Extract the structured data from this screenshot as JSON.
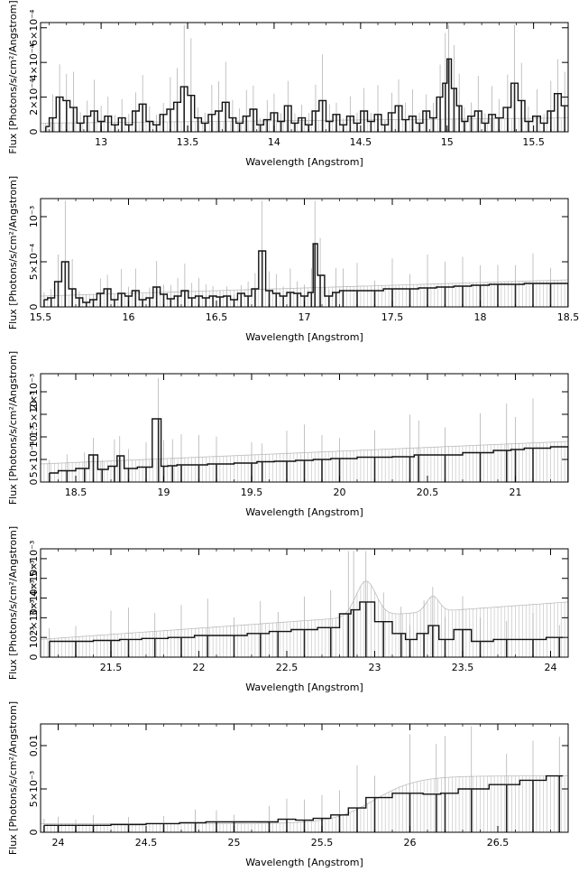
{
  "chart_data": [
    {
      "type": "line",
      "xlabel": "Wavelength [Angstrom]",
      "ylabel": "Flux [Photons/s/cm²/Angstrom]",
      "xlim": [
        12.65,
        15.7
      ],
      "ylim": [
        0,
        0.00063
      ],
      "xticks": [
        "13",
        "13.5",
        "14",
        "14.5",
        "15",
        "15.5"
      ],
      "xtick_values": [
        13,
        13.5,
        14,
        14.5,
        15,
        15.5
      ],
      "ytick_labels": [
        "0",
        "2×10⁻⁴",
        "4×10⁻⁴",
        "6×10⁻⁴"
      ],
      "ytick_values": [
        0,
        0.0002,
        0.0004,
        0.0006
      ],
      "error_band_level": [
        5e-05,
        8e-05
      ],
      "spectrum": [
        [
          12.68,
          3e-05
        ],
        [
          12.72,
          8e-05
        ],
        [
          12.76,
          0.0002
        ],
        [
          12.8,
          0.00018
        ],
        [
          12.84,
          0.00014
        ],
        [
          12.88,
          5e-05
        ],
        [
          12.92,
          9e-05
        ],
        [
          12.96,
          0.00012
        ],
        [
          13.0,
          6e-05
        ],
        [
          13.04,
          9e-05
        ],
        [
          13.08,
          4e-05
        ],
        [
          13.12,
          8e-05
        ],
        [
          13.16,
          4e-05
        ],
        [
          13.2,
          0.00012
        ],
        [
          13.24,
          0.00016
        ],
        [
          13.28,
          6e-05
        ],
        [
          13.32,
          4e-05
        ],
        [
          13.36,
          0.0001
        ],
        [
          13.4,
          0.00013
        ],
        [
          13.44,
          0.00017
        ],
        [
          13.48,
          0.00026
        ],
        [
          13.52,
          0.00021
        ],
        [
          13.56,
          8e-05
        ],
        [
          13.6,
          5e-05
        ],
        [
          13.64,
          0.0001
        ],
        [
          13.68,
          0.00012
        ],
        [
          13.72,
          0.00017
        ],
        [
          13.76,
          8e-05
        ],
        [
          13.8,
          5e-05
        ],
        [
          13.84,
          9e-05
        ],
        [
          13.88,
          0.00013
        ],
        [
          13.92,
          4e-05
        ],
        [
          13.96,
          7e-05
        ],
        [
          14.0,
          0.00011
        ],
        [
          14.04,
          6e-05
        ],
        [
          14.08,
          0.00015
        ],
        [
          14.12,
          5e-05
        ],
        [
          14.16,
          8e-05
        ],
        [
          14.2,
          4e-05
        ],
        [
          14.24,
          0.00012
        ],
        [
          14.28,
          0.00018
        ],
        [
          14.32,
          6e-05
        ],
        [
          14.36,
          0.0001
        ],
        [
          14.4,
          4e-05
        ],
        [
          14.44,
          9e-05
        ],
        [
          14.48,
          5e-05
        ],
        [
          14.52,
          0.00012
        ],
        [
          14.56,
          6e-05
        ],
        [
          14.6,
          0.0001
        ],
        [
          14.64,
          4e-05
        ],
        [
          14.68,
          0.00011
        ],
        [
          14.72,
          0.00015
        ],
        [
          14.76,
          7e-05
        ],
        [
          14.8,
          9e-05
        ],
        [
          14.84,
          5e-05
        ],
        [
          14.88,
          0.00012
        ],
        [
          14.92,
          8e-05
        ],
        [
          14.96,
          0.0002
        ],
        [
          14.99,
          0.00028
        ],
        [
          15.01,
          0.00042
        ],
        [
          15.04,
          0.00025
        ],
        [
          15.07,
          0.00015
        ],
        [
          15.1,
          6e-05
        ],
        [
          15.14,
          9e-05
        ],
        [
          15.18,
          0.00012
        ],
        [
          15.22,
          5e-05
        ],
        [
          15.26,
          0.0001
        ],
        [
          15.3,
          8e-05
        ],
        [
          15.35,
          0.00014
        ],
        [
          15.39,
          0.00028
        ],
        [
          15.43,
          0.00018
        ],
        [
          15.47,
          6e-05
        ],
        [
          15.52,
          9e-05
        ],
        [
          15.56,
          5e-05
        ],
        [
          15.6,
          0.00012
        ],
        [
          15.64,
          0.00022
        ],
        [
          15.68,
          0.00015
        ]
      ]
    },
    {
      "type": "line",
      "xlabel": "Wavelength [Angstrom]",
      "ylabel": "Flux [Photons/s/cm²/Angstrom]",
      "xlim": [
        15.5,
        18.5
      ],
      "ylim": [
        0,
        0.0012
      ],
      "xticks": [
        "15.5",
        "16",
        "16.5",
        "17",
        "17.5",
        "18",
        "18.5"
      ],
      "xtick_values": [
        15.5,
        16,
        16.5,
        17,
        17.5,
        18,
        18.5
      ],
      "ytick_labels": [
        "0",
        "5×10⁻⁴",
        "10⁻³"
      ],
      "ytick_values": [
        0,
        0.0005,
        0.001
      ],
      "error_band_level": [
        0.00012,
        0.0003
      ],
      "spectrum": [
        [
          15.52,
          8e-05
        ],
        [
          15.56,
          0.0001
        ],
        [
          15.6,
          0.00028
        ],
        [
          15.64,
          0.0005
        ],
        [
          15.68,
          0.0002
        ],
        [
          15.72,
          0.0001
        ],
        [
          15.76,
          5e-05
        ],
        [
          15.8,
          8e-05
        ],
        [
          15.84,
          0.00015
        ],
        [
          15.88,
          0.0002
        ],
        [
          15.92,
          8e-05
        ],
        [
          15.96,
          0.00015
        ],
        [
          16.0,
          0.00012
        ],
        [
          16.04,
          0.00018
        ],
        [
          16.08,
          8e-05
        ],
        [
          16.12,
          0.0001
        ],
        [
          16.16,
          0.00022
        ],
        [
          16.2,
          0.00014
        ],
        [
          16.24,
          9e-05
        ],
        [
          16.28,
          0.00012
        ],
        [
          16.32,
          0.00018
        ],
        [
          16.36,
          0.0001
        ],
        [
          16.4,
          0.00012
        ],
        [
          16.44,
          0.0001
        ],
        [
          16.48,
          0.00012
        ],
        [
          16.52,
          0.00011
        ],
        [
          16.56,
          0.00012
        ],
        [
          16.6,
          8e-05
        ],
        [
          16.64,
          0.00015
        ],
        [
          16.68,
          0.00012
        ],
        [
          16.72,
          0.0002
        ],
        [
          16.76,
          0.00062
        ],
        [
          16.8,
          0.00018
        ],
        [
          16.84,
          0.00015
        ],
        [
          16.88,
          0.00012
        ],
        [
          16.92,
          0.00016
        ],
        [
          16.96,
          0.00015
        ],
        [
          17.0,
          0.00012
        ],
        [
          17.04,
          0.00016
        ],
        [
          17.06,
          0.0007
        ],
        [
          17.09,
          0.00035
        ],
        [
          17.14,
          0.00012
        ],
        [
          17.18,
          0.00016
        ],
        [
          17.22,
          0.00018
        ],
        [
          17.3,
          0.00018
        ],
        [
          17.4,
          0.00018
        ],
        [
          17.5,
          0.0002
        ],
        [
          17.6,
          0.0002
        ],
        [
          17.7,
          0.00021
        ],
        [
          17.8,
          0.00022
        ],
        [
          17.9,
          0.00023
        ],
        [
          18.0,
          0.00024
        ],
        [
          18.1,
          0.00025
        ],
        [
          18.2,
          0.00025
        ],
        [
          18.3,
          0.00026
        ],
        [
          18.4,
          0.00026
        ],
        [
          18.5,
          0.00026
        ]
      ]
    },
    {
      "type": "line",
      "xlabel": "Wavelength [Angstrom]",
      "ylabel": "Flux [Photons/s/cm²/Angstrom]",
      "xlim": [
        18.3,
        21.3
      ],
      "ylim": [
        0,
        0.0024
      ],
      "xticks": [
        "18.5",
        "19",
        "19.5",
        "20",
        "20.5",
        "21"
      ],
      "xtick_values": [
        18.5,
        19,
        19.5,
        20,
        20.5,
        21
      ],
      "ytick_labels": [
        "0",
        "5×10⁻⁴",
        "10⁻³",
        "1.5×10⁻³",
        "2×10⁻³"
      ],
      "ytick_values": [
        0,
        0.0005,
        0.001,
        0.0015,
        0.002
      ],
      "error_band_level": [
        0.0004,
        0.0009
      ],
      "spectrum": [
        [
          18.35,
          0.0002
        ],
        [
          18.45,
          0.00025
        ],
        [
          18.55,
          0.0003
        ],
        [
          18.6,
          0.0006
        ],
        [
          18.65,
          0.00028
        ],
        [
          18.72,
          0.00035
        ],
        [
          18.75,
          0.00058
        ],
        [
          18.8,
          0.0003
        ],
        [
          18.9,
          0.00033
        ],
        [
          18.97,
          0.0014
        ],
        [
          19.0,
          0.00035
        ],
        [
          19.05,
          0.00036
        ],
        [
          19.1,
          0.00038
        ],
        [
          19.2,
          0.00038
        ],
        [
          19.3,
          0.0004
        ],
        [
          19.5,
          0.00042
        ],
        [
          19.56,
          0.00045
        ],
        [
          19.7,
          0.00046
        ],
        [
          19.8,
          0.00048
        ],
        [
          19.9,
          0.0005
        ],
        [
          20.0,
          0.00052
        ],
        [
          20.2,
          0.00055
        ],
        [
          20.4,
          0.00056
        ],
        [
          20.45,
          0.0006
        ],
        [
          20.6,
          0.0006
        ],
        [
          20.8,
          0.00065
        ],
        [
          20.95,
          0.0007
        ],
        [
          21.0,
          0.00072
        ],
        [
          21.1,
          0.00075
        ],
        [
          21.3,
          0.00078
        ]
      ]
    },
    {
      "type": "line",
      "xlabel": "Wavelength [Angstrom]",
      "ylabel": "Flux [Photons/s/cm²/Angstrom]",
      "xlim": [
        21.1,
        24.1
      ],
      "ylim": [
        0,
        0.0055
      ],
      "xticks": [
        "21.5",
        "22",
        "22.5",
        "23",
        "23.5",
        "24"
      ],
      "xtick_values": [
        21.5,
        22,
        22.5,
        23,
        23.5,
        24
      ],
      "ytick_labels": [
        "0",
        "10⁻³",
        "2×10⁻³",
        "3×10⁻³",
        "4×10⁻³",
        "5×10⁻³"
      ],
      "ytick_values": [
        0,
        0.001,
        0.002,
        0.003,
        0.004,
        0.005
      ],
      "error_band_level": [
        0.0009,
        0.0028
      ],
      "spectrum": [
        [
          21.15,
          0.0008
        ],
        [
          21.3,
          0.0008
        ],
        [
          21.5,
          0.00085
        ],
        [
          21.6,
          0.0009
        ],
        [
          21.75,
          0.00095
        ],
        [
          21.9,
          0.001
        ],
        [
          22.05,
          0.0011
        ],
        [
          22.2,
          0.0011
        ],
        [
          22.35,
          0.0012
        ],
        [
          22.45,
          0.0013
        ],
        [
          22.6,
          0.0014
        ],
        [
          22.75,
          0.0015
        ],
        [
          22.85,
          0.0022
        ],
        [
          22.88,
          0.0024
        ],
        [
          22.95,
          0.0028
        ],
        [
          23.05,
          0.0018
        ],
        [
          23.15,
          0.0012
        ],
        [
          23.2,
          0.0009
        ],
        [
          23.28,
          0.0012
        ],
        [
          23.33,
          0.0016
        ],
        [
          23.4,
          0.0009
        ],
        [
          23.5,
          0.0014
        ],
        [
          23.6,
          0.0008
        ],
        [
          23.75,
          0.0009
        ],
        [
          23.9,
          0.0009
        ],
        [
          24.05,
          0.001
        ]
      ]
    },
    {
      "type": "line",
      "xlabel": "Wavelength [Angstrom]",
      "ylabel": "Flux [Photons/s/cm²/Angstrom]",
      "xlim": [
        23.9,
        26.9
      ],
      "ylim": [
        0,
        0.0125
      ],
      "xticks": [
        "24",
        "24.5",
        "25",
        "25.5",
        "26",
        "26.5"
      ],
      "xtick_values": [
        24,
        24.5,
        25,
        25.5,
        26,
        26.5
      ],
      "ytick_labels": [
        "0",
        "5×10⁻³",
        "0.01"
      ],
      "ytick_values": [
        0,
        0.005,
        0.01
      ],
      "error_band_level": [
        0.001,
        0.0065
      ],
      "spectrum": [
        [
          23.92,
          0.0008
        ],
        [
          24.0,
          0.0008
        ],
        [
          24.1,
          0.0008
        ],
        [
          24.2,
          0.0008
        ],
        [
          24.4,
          0.0009
        ],
        [
          24.6,
          0.001
        ],
        [
          24.78,
          0.0011
        ],
        [
          24.9,
          0.0012
        ],
        [
          25.0,
          0.0012
        ],
        [
          25.2,
          0.0012
        ],
        [
          25.3,
          0.0015
        ],
        [
          25.4,
          0.0014
        ],
        [
          25.5,
          0.0016
        ],
        [
          25.6,
          0.002
        ],
        [
          25.7,
          0.0028
        ],
        [
          25.8,
          0.004
        ],
        [
          26.0,
          0.0045
        ],
        [
          26.15,
          0.0044
        ],
        [
          26.2,
          0.0045
        ],
        [
          26.35,
          0.005
        ],
        [
          26.55,
          0.0055
        ],
        [
          26.7,
          0.006
        ],
        [
          26.85,
          0.0065
        ]
      ]
    }
  ]
}
